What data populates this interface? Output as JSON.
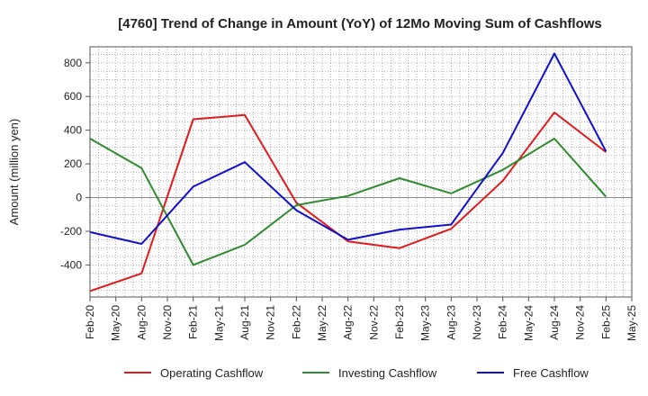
{
  "chart_data": {
    "type": "line",
    "title": "[4760]  Trend of Change in Amount (YoY) of 12Mo Moving Sum of Cashflows",
    "xlabel": "",
    "ylabel": "Amount (million yen)",
    "ylim": [
      -590,
      895
    ],
    "yticks": [
      -400,
      -200,
      0,
      200,
      400,
      600,
      800
    ],
    "grid": true,
    "legend_position": "bottom",
    "categories": [
      "Feb-20",
      "May-20",
      "Aug-20",
      "Nov-20",
      "Feb-21",
      "May-21",
      "Aug-21",
      "Nov-21",
      "Feb-22",
      "May-22",
      "Aug-22",
      "Nov-22",
      "Feb-23",
      "May-23",
      "Aug-23",
      "Nov-23",
      "Feb-24",
      "May-24",
      "Aug-24",
      "Nov-24",
      "Feb-25",
      "May-25"
    ],
    "series": [
      {
        "name": "Operating Cashflow",
        "color": "#e31a1c",
        "points": [
          [
            "Feb-20",
            -555
          ],
          [
            "Aug-20",
            -450
          ],
          [
            "Feb-21",
            465
          ],
          [
            "Aug-21",
            490
          ],
          [
            "Feb-22",
            -30
          ],
          [
            "Aug-22",
            -260
          ],
          [
            "Feb-23",
            -300
          ],
          [
            "Aug-23",
            -185
          ],
          [
            "Feb-24",
            100
          ],
          [
            "Aug-24",
            505
          ],
          [
            "Feb-25",
            270
          ]
        ]
      },
      {
        "name": "Investing Cashflow",
        "color": "#2e8b2e",
        "points": [
          [
            "Feb-20",
            350
          ],
          [
            "Aug-20",
            175
          ],
          [
            "Feb-21",
            -400
          ],
          [
            "Aug-21",
            -280
          ],
          [
            "Feb-22",
            -45
          ],
          [
            "Aug-22",
            10
          ],
          [
            "Feb-23",
            115
          ],
          [
            "Aug-23",
            25
          ],
          [
            "Feb-24",
            165
          ],
          [
            "Aug-24",
            350
          ],
          [
            "Feb-25",
            5
          ]
        ]
      },
      {
        "name": "Free Cashflow",
        "color": "#1010cc",
        "points": [
          [
            "Feb-20",
            -205
          ],
          [
            "Aug-20",
            -275
          ],
          [
            "Feb-21",
            65
          ],
          [
            "Aug-21",
            210
          ],
          [
            "Feb-22",
            -75
          ],
          [
            "Aug-22",
            -250
          ],
          [
            "Feb-23",
            -190
          ],
          [
            "Aug-23",
            -160
          ],
          [
            "Feb-24",
            265
          ],
          [
            "Aug-24",
            855
          ],
          [
            "Feb-25",
            275
          ]
        ]
      }
    ]
  }
}
